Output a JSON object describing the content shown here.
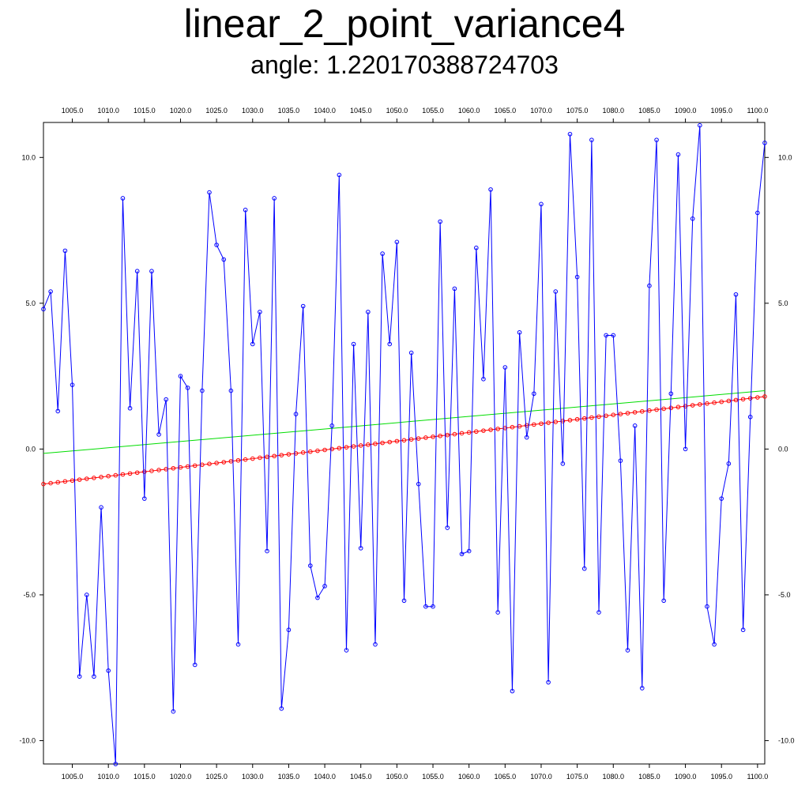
{
  "title": "linear_2_point_variance4",
  "subtitle": "angle: 1.220170388724703",
  "chart_data": {
    "type": "line",
    "title": "linear_2_point_variance4",
    "subtitle": "angle: 1.220170388724703",
    "xlabel": "",
    "ylabel": "",
    "xlim": [
      1001,
      1101
    ],
    "ylim": [
      -10.8,
      11.2
    ],
    "x_ticks": [
      1005.0,
      1010.0,
      1015.0,
      1020.0,
      1025.0,
      1030.0,
      1035.0,
      1040.0,
      1045.0,
      1050.0,
      1055.0,
      1060.0,
      1065.0,
      1070.0,
      1075.0,
      1080.0,
      1085.0,
      1090.0,
      1095.0,
      1100.0
    ],
    "x_tick_labels": [
      "1005.0",
      "1010.0",
      "1015.0",
      "1020.0",
      "1025.0",
      "1030.0",
      "1035.0",
      "1040.0",
      "1045.0",
      "1050.0",
      "1055.0",
      "1060.0",
      "1065.0",
      "1070.0",
      "1075.0",
      "1080.0",
      "1085.0",
      "1090.0",
      "1095.0",
      "1100.0"
    ],
    "y_ticks": [
      10.0,
      5.0,
      0.0,
      -5.0,
      -10.0
    ],
    "y_tick_labels": [
      "10.0",
      "5.0",
      "0.0",
      "-5.0",
      "-10.0"
    ],
    "grid": false,
    "legend": "none",
    "x_start": 1001,
    "series": [
      {
        "color": "#0000ff",
        "markers": true,
        "values": [
          4.8,
          5.4,
          1.3,
          6.8,
          2.2,
          -7.8,
          -5.0,
          -7.8,
          -2.0,
          -7.6,
          -10.8,
          8.6,
          1.4,
          6.1,
          -1.7,
          6.1,
          0.5,
          1.7,
          -9.0,
          2.5,
          2.1,
          -7.4,
          2.0,
          8.8,
          7.0,
          6.5,
          2.0,
          -6.7,
          8.2,
          3.6,
          4.7,
          -3.5,
          8.6,
          -8.9,
          -6.2,
          1.2,
          4.9,
          -4.0,
          -5.1,
          -4.7,
          0.8,
          9.4,
          -6.9,
          3.6,
          -3.4,
          4.7,
          -6.7,
          6.7,
          3.6,
          7.1,
          -5.2,
          3.3,
          -1.2,
          -5.4,
          -5.4,
          7.8,
          -2.7,
          5.5,
          -3.6,
          -3.5,
          6.9,
          2.4,
          8.9,
          -5.6,
          2.8,
          -8.3,
          4.0,
          0.4,
          1.9,
          8.4,
          -8.0,
          5.4,
          -0.5,
          10.8,
          5.9,
          -4.1,
          10.6,
          -5.6,
          3.9,
          3.9,
          -0.4,
          -6.9,
          0.8,
          -8.2,
          5.6,
          10.6,
          -5.2,
          1.9,
          10.1,
          0.0,
          7.9,
          11.1,
          -5.4,
          -6.7,
          -1.7,
          -0.5,
          5.3,
          -6.2,
          1.1,
          8.1,
          10.5
        ]
      },
      {
        "color": "#ff0000",
        "markers": true,
        "values": [
          -1.2,
          -1.17,
          -1.14,
          -1.11,
          -1.08,
          -1.05,
          -1.02,
          -0.99,
          -0.96,
          -0.93,
          -0.9,
          -0.87,
          -0.84,
          -0.81,
          -0.78,
          -0.75,
          -0.72,
          -0.69,
          -0.66,
          -0.63,
          -0.6,
          -0.57,
          -0.54,
          -0.51,
          -0.48,
          -0.45,
          -0.42,
          -0.39,
          -0.36,
          -0.33,
          -0.3,
          -0.27,
          -0.24,
          -0.21,
          -0.18,
          -0.15,
          -0.12,
          -0.09,
          -0.06,
          -0.03,
          0.0,
          0.03,
          0.06,
          0.09,
          0.12,
          0.15,
          0.18,
          0.21,
          0.24,
          0.27,
          0.3,
          0.33,
          0.36,
          0.39,
          0.42,
          0.45,
          0.48,
          0.51,
          0.54,
          0.57,
          0.6,
          0.63,
          0.66,
          0.69,
          0.72,
          0.75,
          0.78,
          0.81,
          0.84,
          0.87,
          0.9,
          0.93,
          0.96,
          0.99,
          1.02,
          1.05,
          1.08,
          1.11,
          1.14,
          1.17,
          1.2,
          1.23,
          1.26,
          1.29,
          1.32,
          1.35,
          1.38,
          1.41,
          1.44,
          1.47,
          1.5,
          1.53,
          1.56,
          1.59,
          1.62,
          1.65,
          1.68,
          1.71,
          1.74,
          1.77,
          1.8
        ]
      },
      {
        "color": "#00dd00",
        "markers": false,
        "x": [
          1001,
          1101
        ],
        "values": [
          -0.15,
          2.0
        ]
      }
    ]
  }
}
